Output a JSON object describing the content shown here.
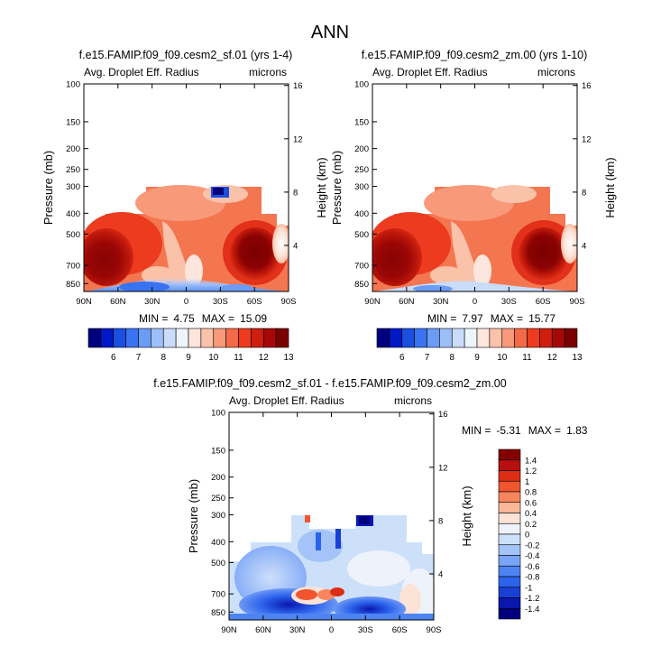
{
  "page_title": "ANN",
  "colors": {
    "abs_scale": [
      "#00007f",
      "#0019c4",
      "#1a4fe0",
      "#3a73f2",
      "#6a9cf5",
      "#9dbff8",
      "#c9dcf9",
      "#eef4fb",
      "#fde6dd",
      "#fbc2aa",
      "#f8997a",
      "#f46a48",
      "#ec3b1f",
      "#cf1f0f",
      "#a60808",
      "#7a0000"
    ],
    "diff_scale": [
      "#00007f",
      "#0a16b0",
      "#1a3fd6",
      "#2c63ec",
      "#4d84f2",
      "#7aa4f6",
      "#a4c3f8",
      "#cde0fa",
      "#eef3fb",
      "#fde2d6",
      "#fbb799",
      "#f7865f",
      "#f15530",
      "#db2e14",
      "#b51010",
      "#860000"
    ]
  },
  "chart_data": [
    {
      "type": "heatmap",
      "title": "f.e15.FAMIP.f09_f09.cesm2_sf.01 (yrs 1-4)",
      "left_label": "Avg. Droplet Eff. Radius",
      "right_label": "microns",
      "xlabel": "",
      "ylabel": "Pressure (mb)",
      "y2label": "Height (km)",
      "x_ticks": [
        "90N",
        "60N",
        "30N",
        "0",
        "30S",
        "60S",
        "90S"
      ],
      "y_ticks": [
        "100",
        "150",
        "200",
        "250",
        "300",
        "400",
        "500",
        "700",
        "850"
      ],
      "y2_ticks": [
        "16",
        "12",
        "8",
        "4"
      ],
      "xlim": [
        90,
        -90
      ],
      "ylim": [
        100,
        925
      ],
      "stats": {
        "min_label": "MIN =",
        "min": "4.75",
        "max_label": "MAX =",
        "max": "15.09"
      },
      "colorbar_labels": [
        "6",
        "7",
        "8",
        "9",
        "10",
        "11",
        "12",
        "13"
      ]
    },
    {
      "type": "heatmap",
      "title": "f.e15.FAMIP.f09_f09.cesm2_zm.00 (yrs 1-10)",
      "left_label": "Avg. Droplet Eff. Radius",
      "right_label": "microns",
      "xlabel": "",
      "ylabel": "Pressure (mb)",
      "y2label": "Height (km)",
      "x_ticks": [
        "90N",
        "60N",
        "30N",
        "0",
        "30S",
        "60S",
        "90S"
      ],
      "y_ticks": [
        "100",
        "150",
        "200",
        "250",
        "300",
        "400",
        "500",
        "700",
        "850"
      ],
      "y2_ticks": [
        "16",
        "12",
        "8",
        "4"
      ],
      "xlim": [
        90,
        -90
      ],
      "ylim": [
        100,
        925
      ],
      "stats": {
        "min_label": "MIN =",
        "min": "7.97",
        "max_label": "MAX =",
        "max": "15.77"
      },
      "colorbar_labels": [
        "6",
        "7",
        "8",
        "9",
        "10",
        "11",
        "12",
        "13"
      ]
    },
    {
      "type": "heatmap",
      "title": "f.e15.FAMIP.f09_f09.cesm2_sf.01 - f.e15.FAMIP.f09_f09.cesm2_zm.00",
      "left_label": "Avg. Droplet Eff. Radius",
      "right_label": "microns",
      "xlabel": "",
      "ylabel": "Pressure (mb)",
      "y2label": "Height (km)",
      "x_ticks": [
        "90N",
        "60N",
        "30N",
        "0",
        "30S",
        "60S",
        "90S"
      ],
      "y_ticks": [
        "100",
        "150",
        "200",
        "250",
        "300",
        "400",
        "500",
        "700",
        "850"
      ],
      "y2_ticks": [
        "16",
        "12",
        "8",
        "4"
      ],
      "xlim": [
        90,
        -90
      ],
      "ylim": [
        100,
        925
      ],
      "stats": {
        "min_label": "MIN =",
        "min": "-5.31",
        "max_label": "MAX =",
        "max": "1.83"
      },
      "colorbar_labels": [
        "1.4",
        "1.2",
        "1",
        "0.8",
        "0.6",
        "0.4",
        "0.2",
        "0",
        "-0.2",
        "-0.4",
        "-0.6",
        "-0.8",
        "-1",
        "-1.2",
        "-1.4"
      ]
    }
  ]
}
